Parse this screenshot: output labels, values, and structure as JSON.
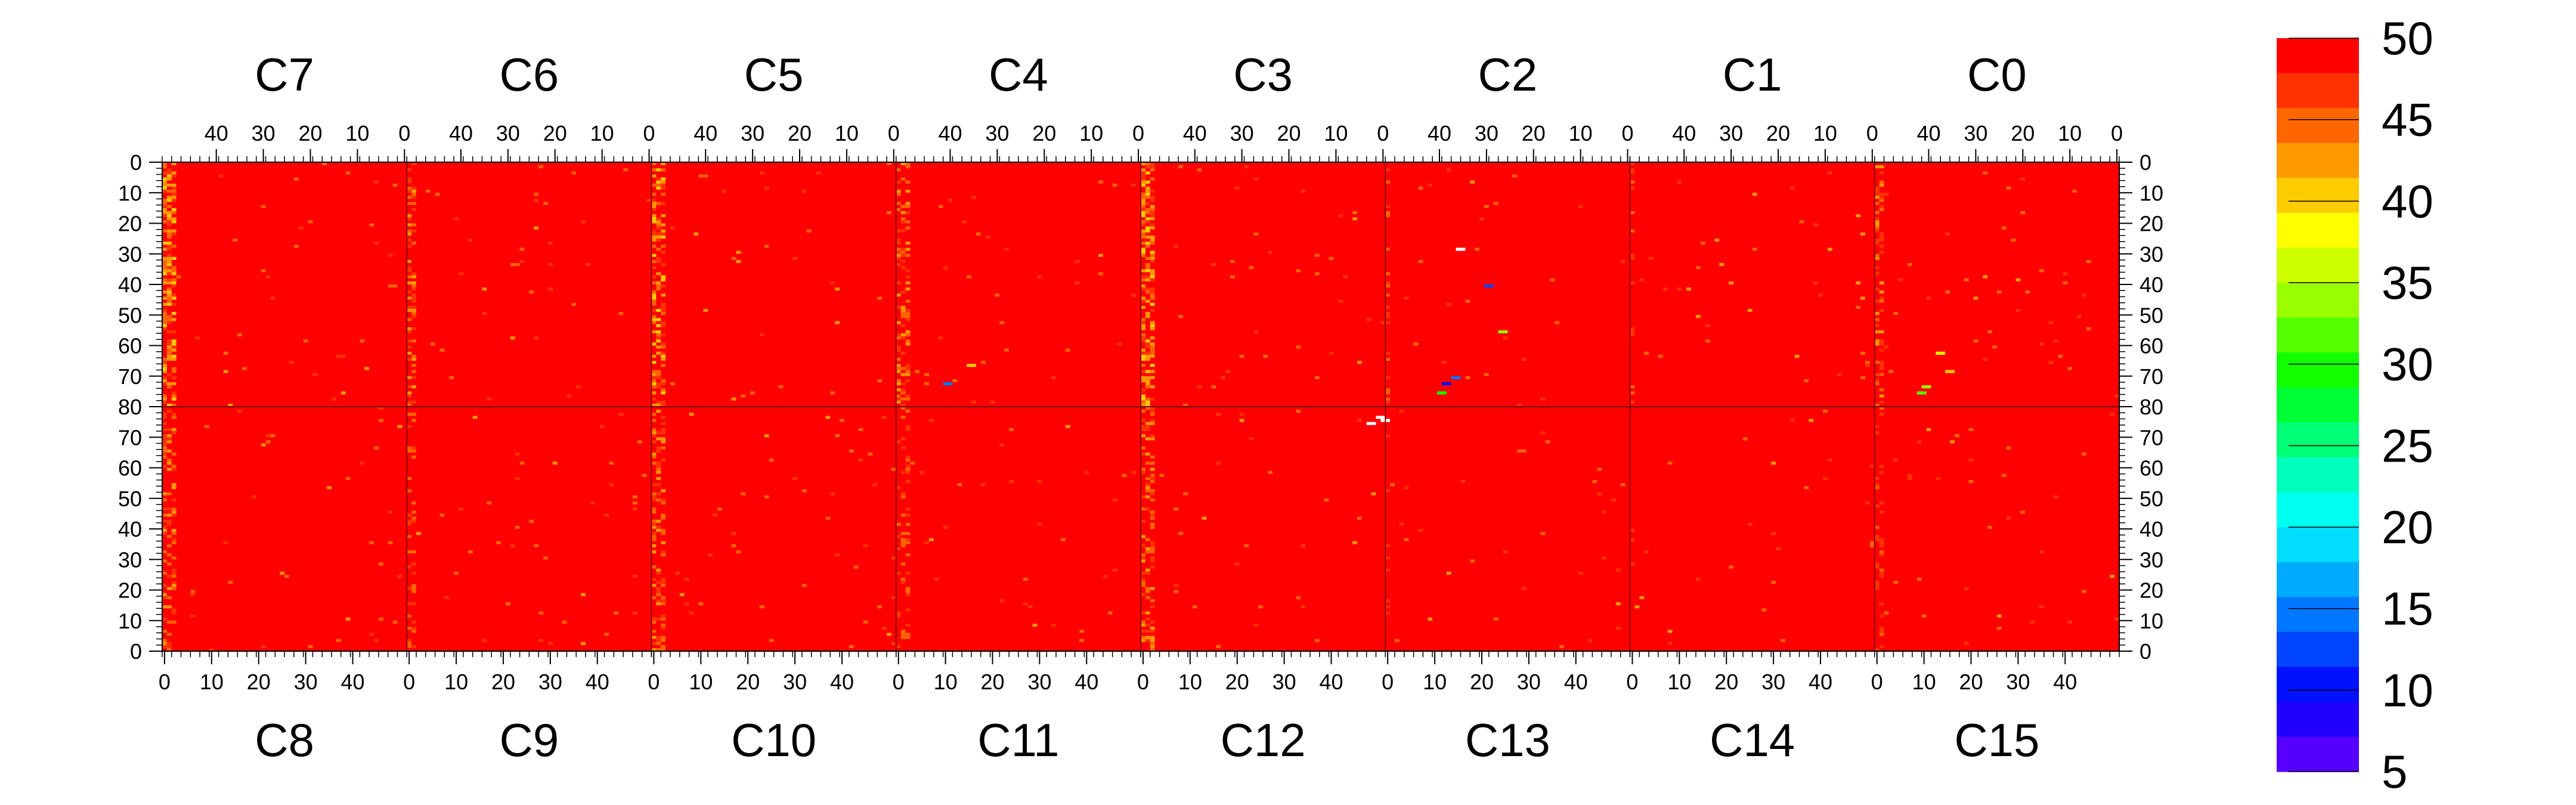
{
  "chart_data": {
    "type": "heatmap",
    "title": "",
    "xlabel": "",
    "ylabel": "",
    "top_chips": [
      "C7",
      "C6",
      "C5",
      "C4",
      "C3",
      "C2",
      "C1",
      "C0"
    ],
    "bottom_chips": [
      "C8",
      "C9",
      "C10",
      "C11",
      "C12",
      "C13",
      "C14",
      "C15"
    ],
    "columns_per_chip": 52,
    "rows_per_half": 80,
    "top_x_ticks": [
      "40",
      "30",
      "20",
      "10",
      "0"
    ],
    "top_x_tick_values": [
      40,
      30,
      20,
      10,
      0
    ],
    "bottom_x_ticks": [
      "0",
      "10",
      "20",
      "30",
      "40"
    ],
    "bottom_x_tick_values": [
      0,
      10,
      20,
      30,
      40
    ],
    "top_y_ticks": [
      "0",
      "10",
      "20",
      "30",
      "40",
      "50",
      "60",
      "70",
      "80"
    ],
    "bottom_y_ticks": [
      "80",
      "70",
      "60",
      "50",
      "40",
      "30",
      "20",
      "10",
      "0"
    ],
    "y_tick_values": [
      0,
      10,
      20,
      30,
      40,
      50,
      60,
      70,
      80
    ],
    "zlim": [
      5,
      50
    ],
    "dominant_value": 50,
    "colorbar": {
      "ticks": [
        "50",
        "45",
        "40",
        "35",
        "30",
        "25",
        "20",
        "15",
        "10",
        "5"
      ],
      "tick_values": [
        50,
        45,
        40,
        35,
        30,
        25,
        20,
        15,
        10,
        5
      ],
      "colors": [
        "#ff0000",
        "#ff3300",
        "#ff6600",
        "#ff9900",
        "#ffcc00",
        "#ffff00",
        "#ccff00",
        "#99ff00",
        "#55ff00",
        "#11ff00",
        "#00ff33",
        "#00ff77",
        "#00ffbb",
        "#00ffee",
        "#00ddff",
        "#00aaff",
        "#0077ff",
        "#0044ff",
        "#0011ff",
        "#2200ff",
        "#5500ff"
      ]
    },
    "hot_columns": [
      {
        "chip_index": 0,
        "columns": [
          51,
          50,
          49
        ],
        "value": 44
      },
      {
        "chip_index": 1,
        "columns": [
          51,
          50
        ],
        "value": 46
      },
      {
        "chip_index": 2,
        "columns": [
          51,
          50,
          49
        ],
        "value": 44
      },
      {
        "chip_index": 3,
        "columns": [
          51,
          50,
          49
        ],
        "value": 46
      },
      {
        "chip_index": 4,
        "columns": [
          51,
          50,
          49
        ],
        "value": 44
      },
      {
        "chip_index": 5,
        "columns": [
          51
        ],
        "value": 48
      },
      {
        "chip_index": 6,
        "columns": [
          51
        ],
        "value": 49
      },
      {
        "chip_index": 7,
        "columns": [
          50,
          51
        ],
        "value": 47
      }
    ],
    "low_pixels": [
      {
        "chip_index": 5,
        "x": 36,
        "y": 28,
        "value": 5
      },
      {
        "chip_index": 5,
        "x": 30,
        "y": 40,
        "value": 12
      },
      {
        "chip_index": 5,
        "x": 37,
        "y": 70,
        "value": 15
      },
      {
        "chip_index": 5,
        "x": 39,
        "y": 72,
        "value": 10
      },
      {
        "chip_index": 5,
        "x": 40,
        "y": 75,
        "value": 30
      },
      {
        "chip_index": 5,
        "x": 27,
        "y": 55,
        "value": 33
      },
      {
        "chip_index": 7,
        "x": 38,
        "y": 62,
        "value": 36
      },
      {
        "chip_index": 7,
        "x": 41,
        "y": 73,
        "value": 33
      },
      {
        "chip_index": 7,
        "x": 42,
        "y": 75,
        "value": 31
      },
      {
        "chip_index": 7,
        "x": 36,
        "y": 68,
        "value": 40
      },
      {
        "chip_index": 3,
        "x": 41,
        "y": 72,
        "value": 15
      },
      {
        "chip_index": 3,
        "x": 36,
        "y": 66,
        "value": 40
      },
      {
        "chip_index": 12,
        "x": 51,
        "y": 75,
        "value": 5
      },
      {
        "chip_index": 12,
        "x": 50,
        "y": 76,
        "value": 5
      },
      {
        "chip_index": 12,
        "x": 48,
        "y": 74,
        "value": 5
      }
    ]
  }
}
